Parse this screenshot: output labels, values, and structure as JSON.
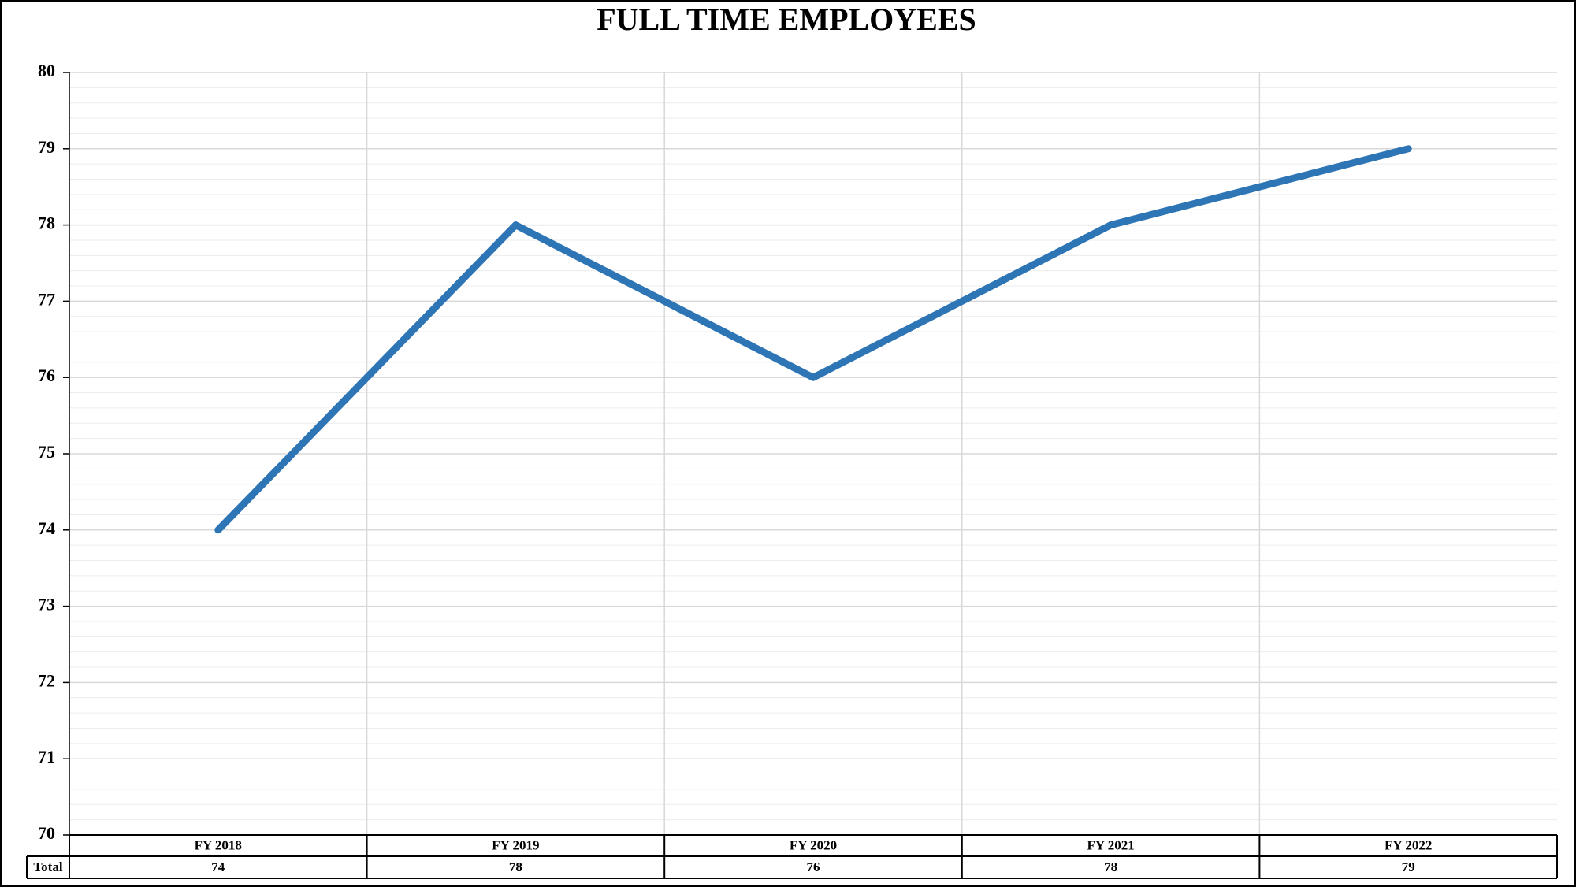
{
  "chart_data": {
    "type": "line",
    "title": "FULL TIME EMPLOYEES",
    "categories": [
      "FY 2018",
      "FY 2019",
      "FY 2020",
      "FY 2021",
      "FY 2022"
    ],
    "series": [
      {
        "name": "Total",
        "color": "#2e75b6",
        "values": [
          74,
          78,
          76,
          78,
          79
        ]
      }
    ],
    "ylim": [
      70,
      80
    ],
    "yticks": [
      70,
      71,
      72,
      73,
      74,
      75,
      76,
      77,
      78,
      79,
      80
    ],
    "grid": true,
    "minor_grid": true,
    "data_table": true
  }
}
